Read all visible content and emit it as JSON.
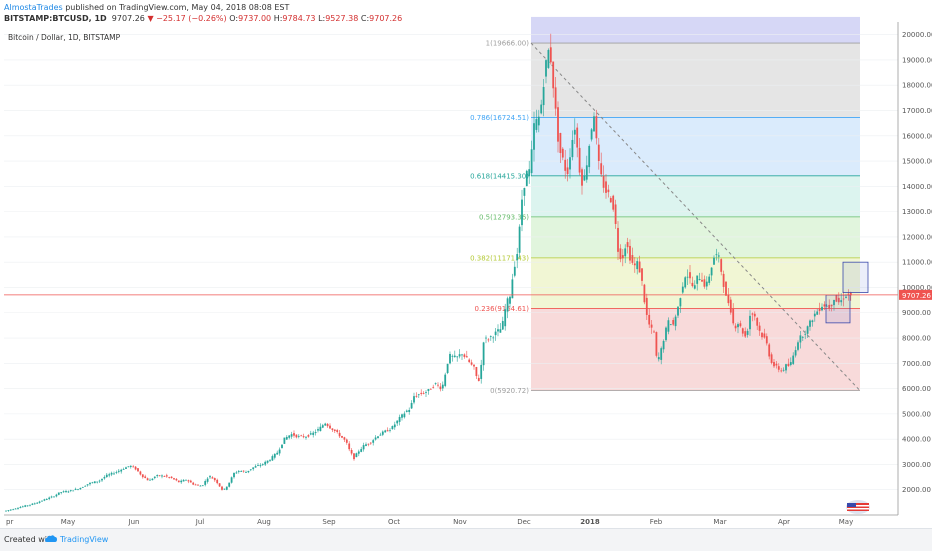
{
  "header": {
    "author": "AlmostaTrades",
    "published": "published on TradingView.com, May 04, 2018 08:08 EST",
    "symbol": "BITSTAMP:BTCUSD, 1D",
    "last": "9707.26",
    "change": "−25.17 (−0.26%)",
    "o_label": "O:",
    "o": "9737.00",
    "h_label": "H:",
    "h": "9784.73",
    "l_label": "L:",
    "l": "9527.38",
    "c_label": "C:",
    "c": "9707.26"
  },
  "chart_data": {
    "type": "candlestick",
    "subtitle": "Bitcoin / Dollar, 1D, BITSTAMP",
    "ylim": [
      1000,
      20500
    ],
    "y_ticks": [
      2000,
      3000,
      4000,
      5000,
      6000,
      7000,
      8000,
      9000,
      10000,
      11000,
      12000,
      13000,
      14000,
      15000,
      16000,
      17000,
      18000,
      19000,
      20000
    ],
    "x_ticks": [
      "pr",
      "May",
      "Jun",
      "Jul",
      "Aug",
      "Sep",
      "Oct",
      "Nov",
      "Dec",
      "2018",
      "Feb",
      "Mar",
      "Apr",
      "May"
    ],
    "last_price": 9707.26,
    "last_price_label": "9707.26",
    "path": [
      [
        0,
        1080
      ],
      [
        10,
        1150
      ],
      [
        20,
        1250
      ],
      [
        30,
        1350
      ],
      [
        40,
        1450
      ],
      [
        50,
        1600
      ],
      [
        60,
        1750
      ],
      [
        66,
        1900
      ],
      [
        75,
        1950
      ],
      [
        85,
        2050
      ],
      [
        95,
        2250
      ],
      [
        105,
        2350
      ],
      [
        112,
        2550
      ],
      [
        122,
        2700
      ],
      [
        130,
        2850
      ],
      [
        136,
        2950
      ],
      [
        141,
        2850
      ],
      [
        148,
        2550
      ],
      [
        155,
        2350
      ],
      [
        162,
        2550
      ],
      [
        170,
        2550
      ],
      [
        178,
        2450
      ],
      [
        185,
        2300
      ],
      [
        192,
        2400
      ],
      [
        200,
        2200
      ],
      [
        208,
        2150
      ],
      [
        215,
        2550
      ],
      [
        222,
        2350
      ],
      [
        229,
        1950
      ],
      [
        234,
        2200
      ],
      [
        240,
        2650
      ],
      [
        245,
        2750
      ],
      [
        252,
        2700
      ],
      [
        260,
        2900
      ],
      [
        268,
        3000
      ],
      [
        276,
        3200
      ],
      [
        284,
        3500
      ],
      [
        290,
        4000
      ],
      [
        297,
        4200
      ],
      [
        304,
        4100
      ],
      [
        311,
        4100
      ],
      [
        318,
        4200
      ],
      [
        325,
        4400
      ],
      [
        331,
        4650
      ],
      [
        335,
        4500
      ],
      [
        340,
        4350
      ],
      [
        347,
        4100
      ],
      [
        352,
        3900
      ],
      [
        356,
        3500
      ],
      [
        360,
        3250
      ],
      [
        364,
        3500
      ],
      [
        370,
        3750
      ],
      [
        377,
        3900
      ],
      [
        384,
        4150
      ],
      [
        391,
        4300
      ],
      [
        398,
        4450
      ],
      [
        405,
        4800
      ],
      [
        412,
        5100
      ],
      [
        416,
        5200
      ],
      [
        420,
        5700
      ],
      [
        427,
        5800
      ],
      [
        434,
        5900
      ],
      [
        441,
        6200
      ],
      [
        448,
        6000
      ],
      [
        455,
        7300
      ],
      [
        462,
        7200
      ],
      [
        468,
        7400
      ],
      [
        474,
        7100
      ],
      [
        480,
        6800
      ],
      [
        483,
        6400
      ],
      [
        486,
        6300
      ],
      [
        489,
        7900
      ],
      [
        495,
        8000
      ],
      [
        502,
        8200
      ],
      [
        508,
        8400
      ],
      [
        512,
        9300
      ],
      [
        516,
        9700
      ],
      [
        520,
        10800
      ],
      [
        524,
        11500
      ],
      [
        528,
        13500
      ],
      [
        532,
        14500
      ],
      [
        536,
        14600
      ],
      [
        540,
        16400
      ],
      [
        546,
        16800
      ],
      [
        550,
        18300
      ],
      [
        554,
        19400
      ],
      [
        557,
        19000
      ],
      [
        561,
        17200
      ],
      [
        565,
        15500
      ],
      [
        570,
        14900
      ],
      [
        573,
        14400
      ],
      [
        577,
        15600
      ],
      [
        581,
        16400
      ],
      [
        585,
        14800
      ],
      [
        589,
        14000
      ],
      [
        593,
        15000
      ],
      [
        597,
        16200
      ],
      [
        600,
        16900
      ],
      [
        604,
        15000
      ],
      [
        608,
        14200
      ],
      [
        612,
        13800
      ],
      [
        616,
        13600
      ],
      [
        620,
        13100
      ],
      [
        624,
        11500
      ],
      [
        628,
        11100
      ],
      [
        632,
        11800
      ],
      [
        636,
        11200
      ],
      [
        640,
        10800
      ],
      [
        644,
        11000
      ],
      [
        648,
        10200
      ],
      [
        652,
        9000
      ],
      [
        656,
        8400
      ],
      [
        660,
        8200
      ],
      [
        663,
        7000
      ],
      [
        667,
        7500
      ],
      [
        671,
        8200
      ],
      [
        675,
        8700
      ],
      [
        679,
        8500
      ],
      [
        684,
        9200
      ],
      [
        688,
        10000
      ],
      [
        692,
        10600
      ],
      [
        696,
        10300
      ],
      [
        700,
        9900
      ],
      [
        704,
        10500
      ],
      [
        708,
        10300
      ],
      [
        712,
        10000
      ],
      [
        716,
        10600
      ],
      [
        720,
        11200
      ],
      [
        724,
        11300
      ],
      [
        728,
        10500
      ],
      [
        732,
        9600
      ],
      [
        736,
        9300
      ],
      [
        740,
        8400
      ],
      [
        744,
        8600
      ],
      [
        748,
        8300
      ],
      [
        752,
        8000
      ],
      [
        756,
        8900
      ],
      [
        760,
        9000
      ],
      [
        764,
        8400
      ],
      [
        768,
        8100
      ],
      [
        772,
        7900
      ],
      [
        776,
        7200
      ],
      [
        780,
        6900
      ],
      [
        784,
        6800
      ],
      [
        788,
        6700
      ],
      [
        792,
        6900
      ],
      [
        796,
        6900
      ],
      [
        800,
        7400
      ],
      [
        804,
        7900
      ],
      [
        808,
        8100
      ],
      [
        812,
        8300
      ],
      [
        816,
        8600
      ],
      [
        820,
        8900
      ],
      [
        824,
        9100
      ],
      [
        828,
        9300
      ],
      [
        832,
        9300
      ],
      [
        836,
        9200
      ],
      [
        840,
        9600
      ],
      [
        844,
        9400
      ],
      [
        848,
        9500
      ],
      [
        851,
        9707
      ]
    ],
    "fibonacci": [
      {
        "level": "1",
        "price": "19666.00",
        "value": 19666,
        "color": "#9e9e9e",
        "band": ""
      },
      {
        "level": "0.786",
        "price": "16724.51",
        "value": 16724.51,
        "color": "#42a5f5",
        "band": "#e0e0e0"
      },
      {
        "level": "0.618",
        "price": "14415.30",
        "value": 14415.3,
        "color": "#26a69a",
        "band": "#d3e8fb"
      },
      {
        "level": "0.5",
        "price": "12793.36",
        "value": 12793.36,
        "color": "#66bb6a",
        "band": "#d6f2ec"
      },
      {
        "level": "0.382",
        "price": "11171.43",
        "value": 11171.43,
        "color": "#b3c934",
        "band": "#dcf3d7"
      },
      {
        "level": "0.236",
        "price": "9164.61",
        "value": 9164.61,
        "color": "#ef5350",
        "band": "#eef5cd"
      },
      {
        "level": "0",
        "price": "5920.72",
        "value": 5920.72,
        "color": "#9e9e9e",
        "band": "#f7d4d4"
      }
    ],
    "fib_top_band": {
      "value": 20700,
      "color": "#cfd0f5"
    }
  },
  "colors": {
    "up": "#26a69a",
    "down": "#ef5350",
    "grid": "#eceff2",
    "axis": "#555555",
    "price_line": "#ef5350"
  },
  "footer": {
    "created_with": "Created with",
    "brand": "TradingView"
  }
}
